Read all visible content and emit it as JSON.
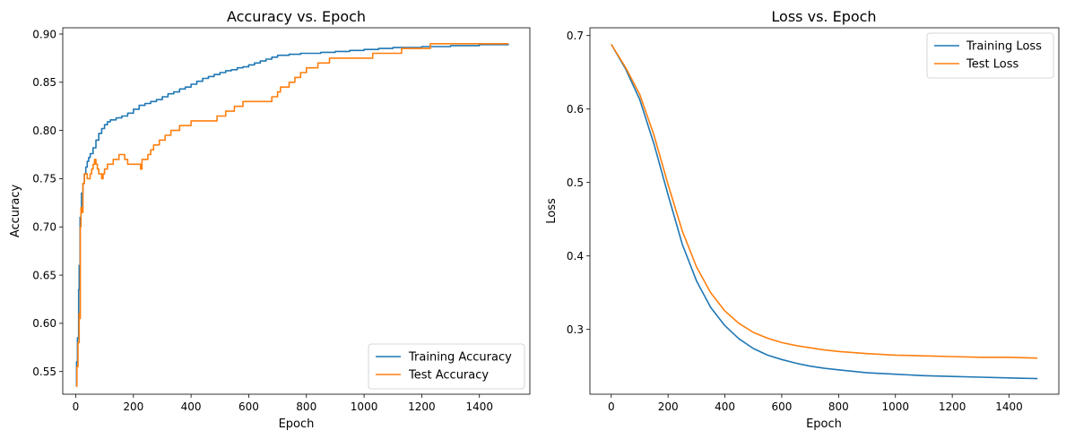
{
  "chart_data": [
    {
      "type": "line",
      "title": "Accuracy vs. Epoch",
      "xlabel": "Epoch",
      "ylabel": "Accuracy",
      "xlim": [
        -45,
        1575
      ],
      "ylim": [
        0.5265,
        0.9065
      ],
      "xticks": [
        0,
        200,
        400,
        600,
        800,
        1000,
        1200,
        1400
      ],
      "xtick_labels": [
        "0",
        "200",
        "400",
        "600",
        "800",
        "1000",
        "1200",
        "1400"
      ],
      "yticks": [
        0.55,
        0.6,
        0.65,
        0.7,
        0.75,
        0.8,
        0.85,
        0.9
      ],
      "ytick_labels": [
        "0.55",
        "0.60",
        "0.65",
        "0.70",
        "0.75",
        "0.80",
        "0.85",
        "0.90"
      ],
      "grid": false,
      "legend_position": "lower-right",
      "series": [
        {
          "name": "Training Accuracy",
          "color": "#1f77b4",
          "step": true,
          "x": [
            0,
            3,
            6,
            10,
            12,
            15,
            18,
            20,
            25,
            30,
            35,
            40,
            45,
            50,
            60,
            70,
            80,
            90,
            100,
            110,
            120,
            140,
            160,
            180,
            200,
            220,
            240,
            260,
            280,
            300,
            320,
            340,
            360,
            380,
            400,
            420,
            440,
            460,
            480,
            500,
            520,
            540,
            560,
            580,
            600,
            620,
            640,
            660,
            680,
            700,
            740,
            780,
            800,
            850,
            900,
            950,
            1000,
            1050,
            1100,
            1150,
            1200,
            1250,
            1300,
            1350,
            1400,
            1450,
            1500
          ],
          "y": [
            0.535,
            0.56,
            0.585,
            0.635,
            0.66,
            0.71,
            0.72,
            0.735,
            0.745,
            0.755,
            0.762,
            0.768,
            0.772,
            0.776,
            0.782,
            0.79,
            0.797,
            0.802,
            0.806,
            0.809,
            0.811,
            0.813,
            0.815,
            0.818,
            0.822,
            0.826,
            0.828,
            0.83,
            0.832,
            0.835,
            0.838,
            0.84,
            0.843,
            0.845,
            0.848,
            0.851,
            0.854,
            0.856,
            0.858,
            0.86,
            0.862,
            0.863,
            0.865,
            0.866,
            0.868,
            0.87,
            0.872,
            0.874,
            0.876,
            0.878,
            0.879,
            0.88,
            0.88,
            0.881,
            0.882,
            0.883,
            0.884,
            0.885,
            0.886,
            0.886,
            0.887,
            0.887,
            0.888,
            0.888,
            0.889,
            0.889,
            0.89
          ]
        },
        {
          "name": "Test Accuracy",
          "color": "#ff7f0e",
          "step": true,
          "x": [
            0,
            4,
            8,
            12,
            14,
            16,
            18,
            20,
            25,
            30,
            40,
            50,
            55,
            60,
            65,
            70,
            75,
            80,
            85,
            90,
            95,
            100,
            110,
            130,
            150,
            170,
            180,
            200,
            220,
            225,
            230,
            240,
            250,
            260,
            270,
            290,
            310,
            330,
            340,
            360,
            380,
            400,
            430,
            460,
            490,
            520,
            550,
            580,
            610,
            640,
            680,
            700,
            710,
            720,
            740,
            760,
            780,
            800,
            820,
            840,
            880,
            900,
            950,
            1000,
            1030,
            1080,
            1130,
            1180,
            1230,
            1280,
            1330,
            1380,
            1450,
            1500
          ],
          "y": [
            0.535,
            0.555,
            0.58,
            0.61,
            0.605,
            0.7,
            0.72,
            0.715,
            0.745,
            0.755,
            0.75,
            0.755,
            0.76,
            0.765,
            0.77,
            0.765,
            0.76,
            0.755,
            0.755,
            0.75,
            0.755,
            0.76,
            0.765,
            0.77,
            0.775,
            0.77,
            0.765,
            0.765,
            0.765,
            0.76,
            0.77,
            0.77,
            0.775,
            0.78,
            0.785,
            0.79,
            0.795,
            0.8,
            0.8,
            0.805,
            0.805,
            0.81,
            0.81,
            0.81,
            0.815,
            0.82,
            0.825,
            0.83,
            0.83,
            0.83,
            0.835,
            0.84,
            0.845,
            0.845,
            0.85,
            0.855,
            0.86,
            0.865,
            0.865,
            0.87,
            0.875,
            0.875,
            0.875,
            0.875,
            0.88,
            0.88,
            0.885,
            0.885,
            0.89,
            0.89,
            0.89,
            0.89,
            0.89,
            0.89
          ]
        }
      ]
    },
    {
      "type": "line",
      "title": "Loss vs. Epoch",
      "xlabel": "Epoch",
      "ylabel": "Loss",
      "xlim": [
        -75,
        1575
      ],
      "ylim": [
        0.2118,
        0.7106
      ],
      "xticks": [
        0,
        200,
        400,
        600,
        800,
        1000,
        1200,
        1400
      ],
      "xtick_labels": [
        "0",
        "200",
        "400",
        "600",
        "800",
        "1000",
        "1200",
        "1400"
      ],
      "yticks": [
        0.3,
        0.4,
        0.5,
        0.6,
        0.7
      ],
      "ytick_labels": [
        "0.3",
        "0.4",
        "0.5",
        "0.6",
        "0.7"
      ],
      "grid": false,
      "legend_position": "upper-right",
      "series": [
        {
          "name": "Training Loss",
          "color": "#1f77b4",
          "x": [
            0,
            50,
            100,
            150,
            200,
            250,
            300,
            350,
            400,
            450,
            500,
            550,
            600,
            650,
            700,
            750,
            800,
            900,
            1000,
            1100,
            1200,
            1300,
            1400,
            1500
          ],
          "y": [
            0.688,
            0.655,
            0.613,
            0.553,
            0.483,
            0.416,
            0.366,
            0.33,
            0.305,
            0.287,
            0.274,
            0.265,
            0.259,
            0.254,
            0.25,
            0.247,
            0.245,
            0.241,
            0.239,
            0.237,
            0.236,
            0.235,
            0.234,
            0.233
          ]
        },
        {
          "name": "Test Loss",
          "color": "#ff7f0e",
          "x": [
            0,
            50,
            100,
            150,
            200,
            250,
            300,
            350,
            400,
            450,
            500,
            550,
            600,
            650,
            700,
            750,
            800,
            900,
            1000,
            1100,
            1200,
            1300,
            1400,
            1500
          ],
          "y": [
            0.688,
            0.657,
            0.62,
            0.565,
            0.497,
            0.434,
            0.385,
            0.35,
            0.325,
            0.308,
            0.296,
            0.288,
            0.282,
            0.278,
            0.275,
            0.272,
            0.27,
            0.267,
            0.265,
            0.264,
            0.263,
            0.262,
            0.262,
            0.261
          ]
        }
      ]
    }
  ]
}
